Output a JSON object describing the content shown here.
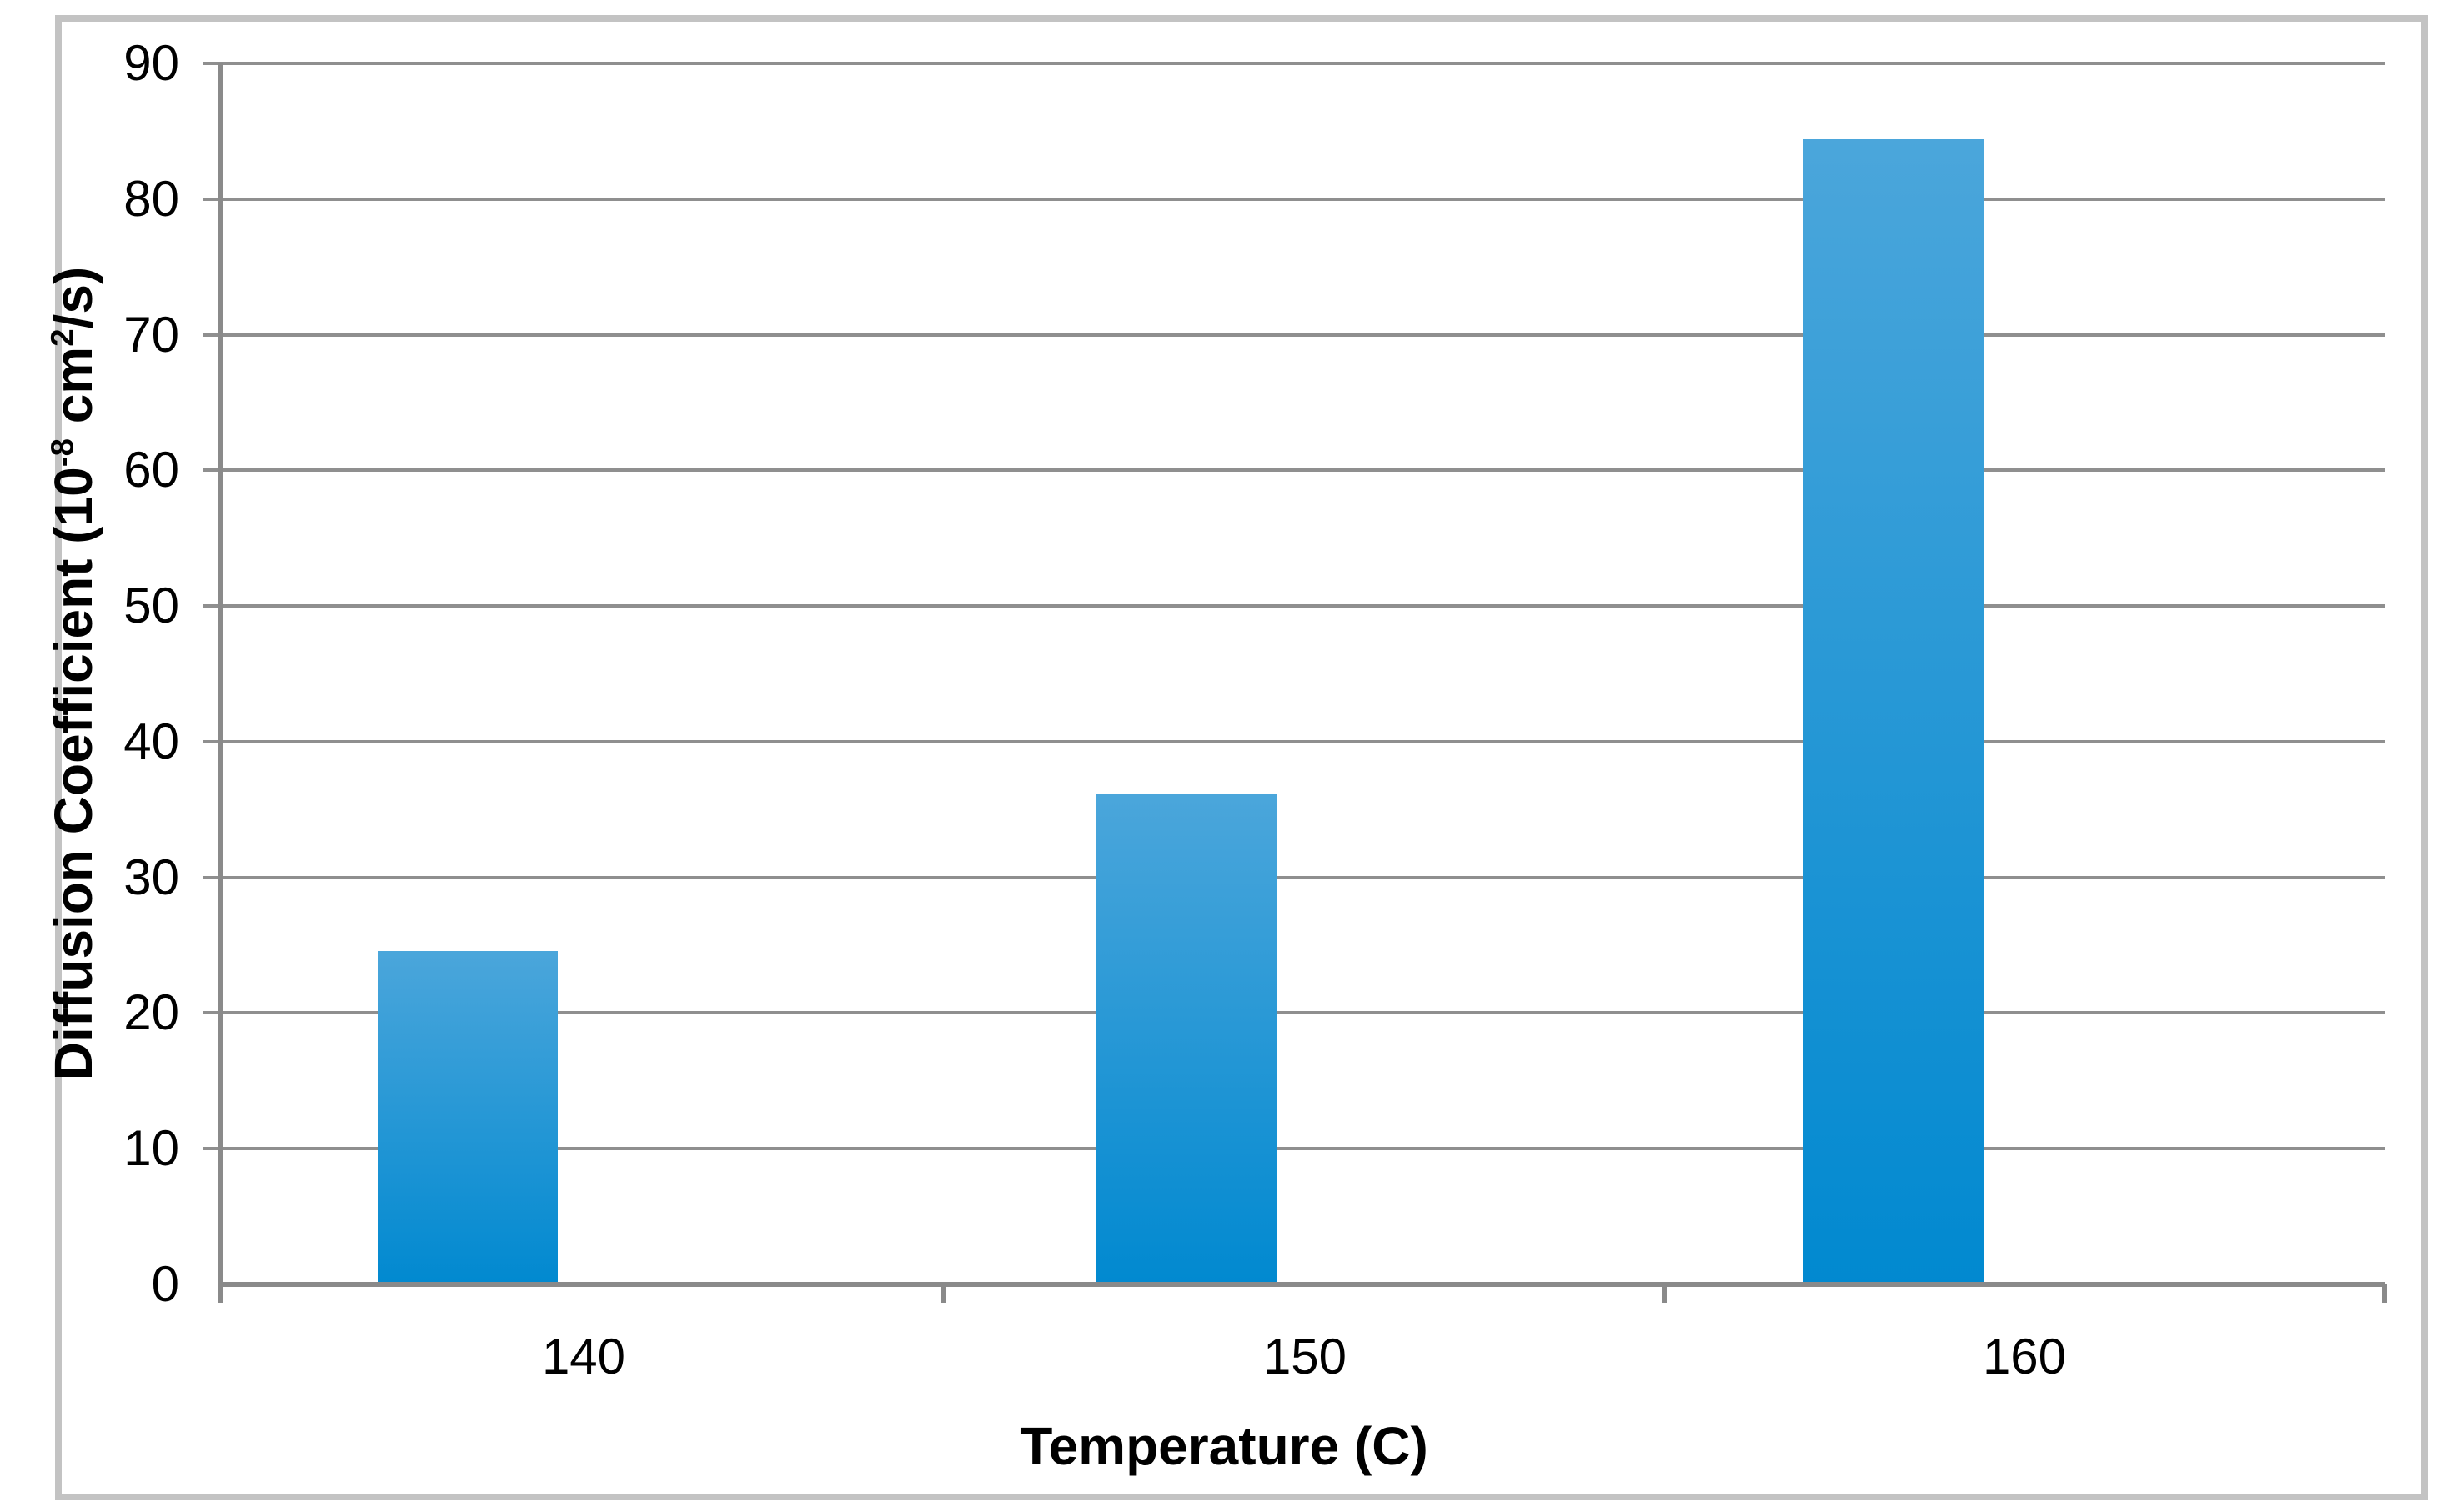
{
  "chart_data": {
    "type": "bar",
    "title": "",
    "categories": [
      "140",
      "150",
      "160"
    ],
    "values": [
      24.6,
      36.2,
      84.4
    ],
    "series_name": "Diffusion Coefficient",
    "xlabel": "Temperature (C)",
    "ylabel": "Diffusion Coefficient (10-8 cm2/s)",
    "ylabel_parts": [
      {
        "text": "Diffusion Coefficient (10"
      },
      {
        "text": "-8",
        "sup": true
      },
      {
        "text": " cm"
      },
      {
        "text": "2",
        "sup": true
      },
      {
        "text": "/s)"
      }
    ],
    "ylim": [
      0,
      90
    ],
    "ytick_step": 10,
    "yticks": [
      0,
      10,
      20,
      30,
      40,
      50,
      60,
      70,
      80,
      90
    ],
    "grid": true,
    "legend": false,
    "colors": {
      "bar_gradient_top": "#4BA6DB",
      "bar_gradient_bottom": "#0189D0",
      "gridline": "#8F8F8F",
      "axis": "#8A8A8A",
      "chart_border": "#C3C3C3",
      "text": "#000000",
      "background": "#FFFFFF"
    }
  }
}
